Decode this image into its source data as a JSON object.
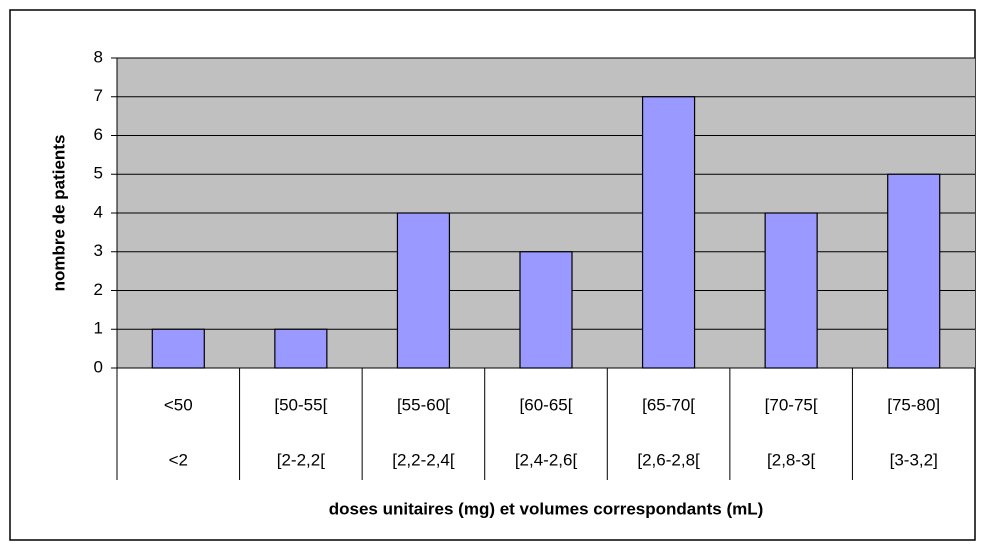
{
  "chart_data": {
    "type": "bar",
    "y_label": "nombre de patients",
    "x_label": "doses unitaires (mg) et volumes correspondants (mL)",
    "categories": [
      "<50",
      "[50-55[",
      "[55-60[",
      "[60-65[",
      "[65-70[",
      "[70-75[",
      "[75-80]"
    ],
    "categories_2": [
      "<2",
      "[2-2,2[",
      "[2,2-2,4[",
      "[2,4-2,6[",
      "[2,6-2,8[",
      "[2,8-3[",
      "[3-3,2]"
    ],
    "values": [
      1,
      1,
      4,
      3,
      7,
      4,
      5
    ],
    "color": "#9999ff",
    "ylim": [
      0,
      8
    ],
    "yticks": [
      0,
      1,
      2,
      3,
      4,
      5,
      6,
      7,
      8
    ],
    "grid": true
  }
}
